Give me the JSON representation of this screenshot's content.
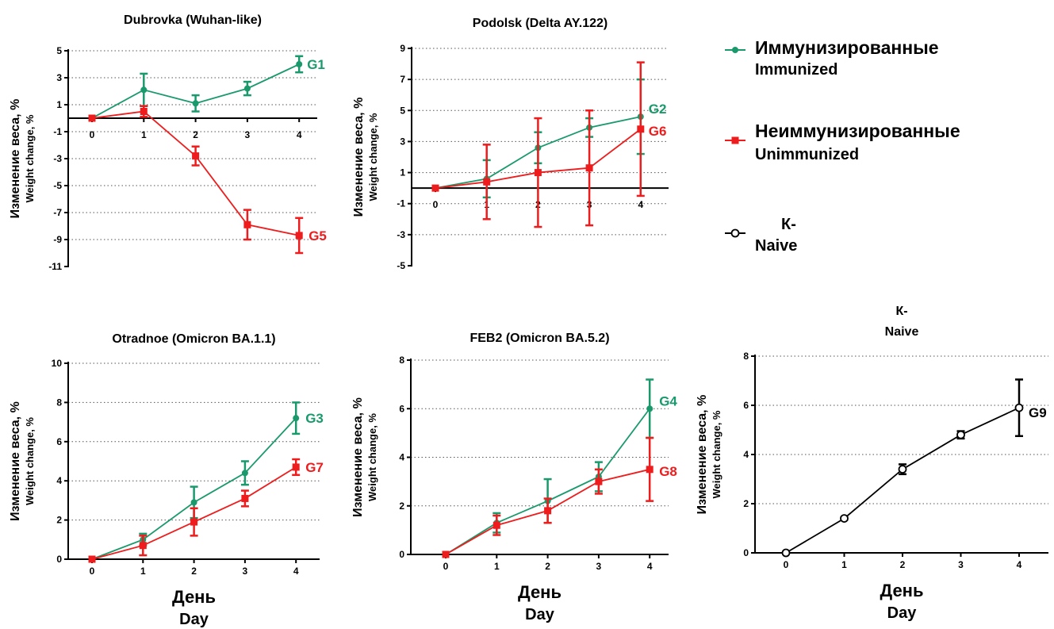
{
  "legend": {
    "items": [
      {
        "line1": "Иммунизированные",
        "line2": "Immunized",
        "color": "#1a9a6c",
        "marker": "circle-filled"
      },
      {
        "line1": "Неиммунизированные",
        "line2": "Unimmunized",
        "color": "#ee1c1c",
        "marker": "square-filled"
      },
      {
        "line1": "К-",
        "line2": "Naive",
        "color": "#000000",
        "marker": "circle-open"
      }
    ]
  },
  "colors": {
    "immunized": "#1a9a6c",
    "unimmunized": "#ee1c1c",
    "naive": "#000000",
    "grid": "#555555"
  },
  "chart_data": [
    {
      "type": "line",
      "title": "Dubrovka (Wuhan-like)",
      "subtitle": "",
      "ylabel": "Изменение веса, %",
      "ylabel2": "Weight change, %",
      "xlabel": "",
      "xlabel2": "",
      "x": [
        0,
        1,
        2,
        3,
        4
      ],
      "xticks": [
        "0",
        "1",
        "2",
        "3",
        "4"
      ],
      "ylim": [
        -11,
        5
      ],
      "yticks": [
        "-11",
        "-9",
        "-7",
        "-5",
        "-3",
        "-1",
        "1",
        "3",
        "5"
      ],
      "grid": true,
      "series": [
        {
          "name": "G1",
          "color": "#1a9a6c",
          "marker": "circle-filled",
          "values": [
            0,
            2.1,
            1.1,
            2.2,
            4.0
          ],
          "errors": [
            0,
            1.2,
            0.6,
            0.5,
            0.6
          ]
        },
        {
          "name": "G5",
          "color": "#ee1c1c",
          "marker": "square-filled",
          "values": [
            0,
            0.5,
            -2.8,
            -7.9,
            -8.7
          ],
          "errors": [
            0,
            0.4,
            0.7,
            1.1,
            1.3
          ]
        }
      ]
    },
    {
      "type": "line",
      "title": "Podolsk (Delta AY.122)",
      "subtitle": "",
      "ylabel": "Изменение веса, %",
      "ylabel2": "Weight change, %",
      "xlabel": "",
      "xlabel2": "",
      "x": [
        0,
        1,
        2,
        3,
        4
      ],
      "xticks": [
        "0",
        "1",
        "2",
        "3",
        "4"
      ],
      "ylim": [
        -5,
        9
      ],
      "yticks": [
        "-5",
        "-3",
        "-1",
        "1",
        "3",
        "5",
        "7",
        "9"
      ],
      "grid": true,
      "series": [
        {
          "name": "G2",
          "color": "#1a9a6c",
          "marker": "circle-filled",
          "values": [
            0,
            0.6,
            2.6,
            3.9,
            4.6
          ],
          "errors": [
            0,
            1.2,
            1.0,
            0.6,
            2.4
          ]
        },
        {
          "name": "G6",
          "color": "#ee1c1c",
          "marker": "square-filled",
          "values": [
            0,
            0.4,
            1.0,
            1.3,
            3.8
          ],
          "errors": [
            0,
            2.4,
            3.5,
            3.7,
            4.3
          ]
        }
      ]
    },
    {
      "type": "line",
      "title": "Otradnoe (Omicron BA.1.1)",
      "subtitle": "",
      "ylabel": "Изменение веса, %",
      "ylabel2": "Weight change, %",
      "xlabel": "День",
      "xlabel2": "Day",
      "x": [
        0,
        1,
        2,
        3,
        4
      ],
      "xticks": [
        "0",
        "1",
        "2",
        "3",
        "4"
      ],
      "ylim": [
        0,
        10
      ],
      "yticks": [
        "0",
        "2",
        "4",
        "6",
        "8",
        "10"
      ],
      "grid": true,
      "series": [
        {
          "name": "G3",
          "color": "#1a9a6c",
          "marker": "circle-filled",
          "values": [
            0,
            1.0,
            2.9,
            4.4,
            7.2
          ],
          "errors": [
            0,
            0.3,
            0.8,
            0.6,
            0.8
          ]
        },
        {
          "name": "G7",
          "color": "#ee1c1c",
          "marker": "square-filled",
          "values": [
            0,
            0.7,
            1.9,
            3.1,
            4.7
          ],
          "errors": [
            0,
            0.5,
            0.7,
            0.4,
            0.4
          ]
        }
      ]
    },
    {
      "type": "line",
      "title": "FEB2 (Omicron BA.5.2)",
      "subtitle": "",
      "ylabel": "Изменение веса, %",
      "ylabel2": "Weight change, %",
      "xlabel": "День",
      "xlabel2": "Day",
      "x": [
        0,
        1,
        2,
        3,
        4
      ],
      "xticks": [
        "0",
        "1",
        "2",
        "3",
        "4"
      ],
      "ylim": [
        0,
        8
      ],
      "yticks": [
        "0",
        "2",
        "4",
        "6",
        "8"
      ],
      "grid": true,
      "series": [
        {
          "name": "G4",
          "color": "#1a9a6c",
          "marker": "circle-filled",
          "values": [
            0,
            1.3,
            2.2,
            3.2,
            6.0
          ],
          "errors": [
            0,
            0.4,
            0.9,
            0.6,
            1.2
          ]
        },
        {
          "name": "G8",
          "color": "#ee1c1c",
          "marker": "square-filled",
          "values": [
            0,
            1.2,
            1.8,
            3.0,
            3.5
          ],
          "errors": [
            0,
            0.4,
            0.5,
            0.5,
            1.3
          ]
        }
      ]
    },
    {
      "type": "line",
      "title": "К-",
      "subtitle": "Naive",
      "ylabel": "Изменение веса, %",
      "ylabel2": "Weight change, %",
      "xlabel": "День",
      "xlabel2": "Day",
      "x": [
        0,
        1,
        2,
        3,
        4
      ],
      "xticks": [
        "0",
        "1",
        "2",
        "3",
        "4"
      ],
      "ylim": [
        0,
        8
      ],
      "yticks": [
        "0",
        "2",
        "4",
        "6",
        "8"
      ],
      "grid": true,
      "series": [
        {
          "name": "G9",
          "color": "#000000",
          "marker": "circle-open",
          "values": [
            0,
            1.4,
            3.4,
            4.8,
            5.9
          ],
          "errors": [
            0,
            0.05,
            0.2,
            0.15,
            1.15
          ]
        }
      ]
    }
  ]
}
